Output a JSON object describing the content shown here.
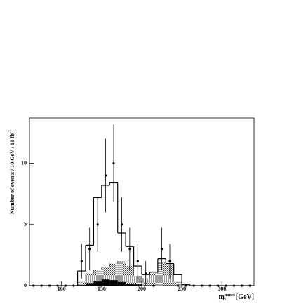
{
  "chart_data": {
    "type": "histogram",
    "xlabel": {
      "base": "m",
      "sub": "H",
      "sup": "mmos",
      "unit": "[GeV]"
    },
    "ylabel": {
      "text": "Number of events / 10 GeV / 10 fb",
      "sup": "-1"
    },
    "bins": [
      60,
      70,
      80,
      90,
      100,
      110,
      120,
      130,
      140,
      150,
      160,
      170,
      180,
      190,
      200,
      210,
      220,
      230,
      240,
      250,
      260,
      270,
      280,
      290,
      300,
      310,
      320,
      330,
      340
    ],
    "histograms": [
      {
        "style": "hatched",
        "color": "#000000",
        "values": [
          0,
          0,
          0,
          0,
          0,
          0,
          0.3,
          1.0,
          1.3,
          1.5,
          1.8,
          2.0,
          1.6,
          0.8,
          0.6,
          1.0,
          1.9,
          1.7,
          0.3,
          0,
          0,
          0,
          0,
          0,
          0,
          0,
          0,
          0
        ]
      },
      {
        "style": "solid",
        "color": "#000000",
        "values": [
          0,
          0,
          0,
          0,
          0,
          0,
          0.05,
          0.2,
          0.35,
          0.5,
          0.45,
          0.3,
          0.15,
          0.1,
          0,
          0,
          0,
          0,
          0,
          0,
          0,
          0,
          0,
          0,
          0,
          0,
          0,
          0
        ]
      },
      {
        "style": "outline",
        "color": "#000000",
        "values": [
          0,
          0,
          0,
          0,
          0,
          0,
          1.2,
          3.3,
          7.2,
          8.2,
          8.4,
          4.3,
          3.2,
          1.6,
          0.9,
          1.1,
          2.2,
          1.8,
          0.9,
          0.1,
          0,
          0,
          0,
          0,
          0,
          0,
          0,
          0
        ]
      }
    ],
    "data": {
      "color": "#000000",
      "values": [
        0,
        0,
        0,
        0,
        0,
        0,
        2,
        3,
        5,
        9,
        10,
        5,
        3,
        2,
        1,
        0,
        3,
        2,
        0,
        0,
        0,
        0,
        0,
        0,
        0,
        0,
        0,
        0
      ],
      "errors": [
        null,
        null,
        null,
        null,
        null,
        null,
        1.41,
        1.73,
        2.24,
        3,
        3.16,
        2.24,
        1.73,
        1.41,
        1,
        null,
        1.73,
        1.41,
        null,
        null,
        null,
        null,
        null,
        null,
        null,
        null,
        null,
        null
      ]
    },
    "xlim": [
      60,
      340
    ],
    "ylim": [
      0,
      13.7
    ],
    "xticks": [
      100,
      150,
      200,
      250,
      300
    ],
    "yticks": [
      0,
      5,
      10
    ]
  }
}
